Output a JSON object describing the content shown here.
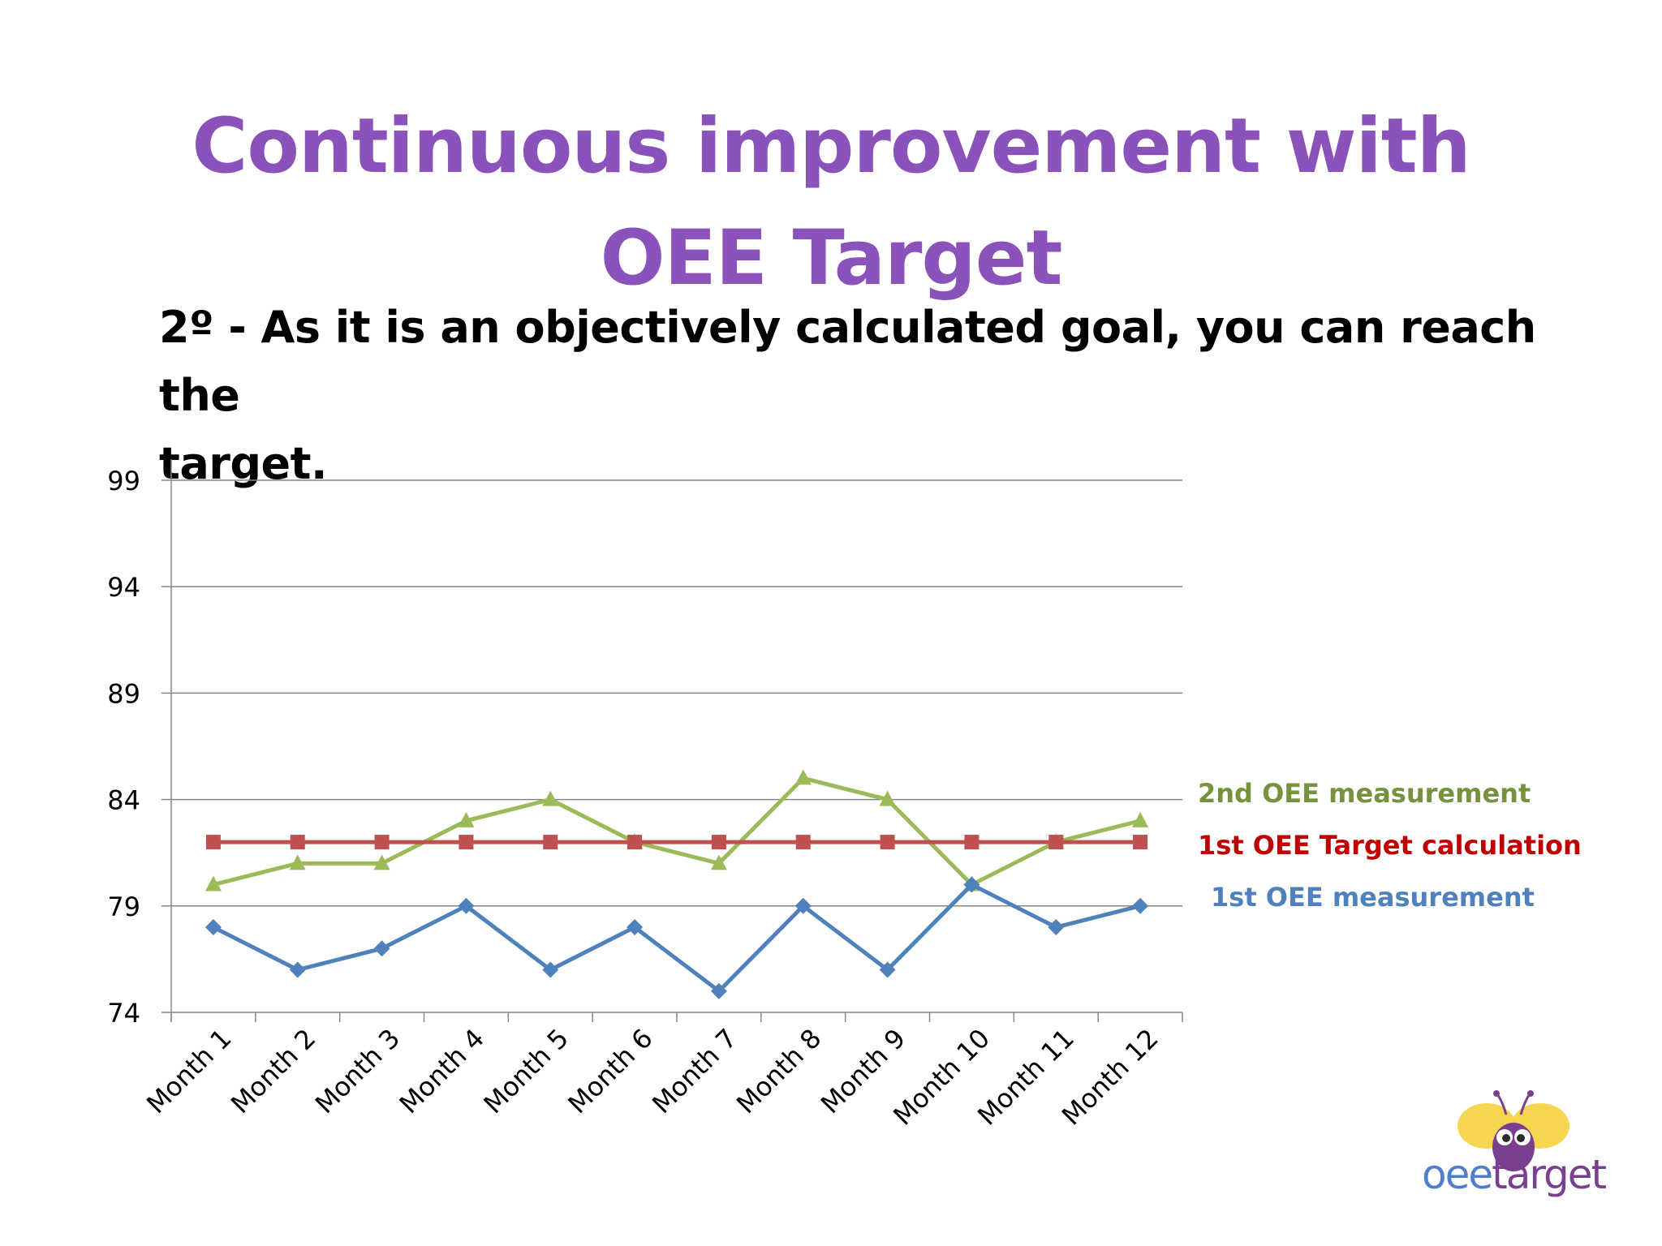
{
  "slide": {
    "title_line1": "Continuous improvement with",
    "title_line2": "OEE Target",
    "subtitle_line1": "2º - As it is an objectively calculated goal, you can reach the",
    "subtitle_line2": "target."
  },
  "logo": {
    "text_a": "oee",
    "text_b": "target",
    "color_a": "#4f7fc8",
    "color_b": "#7a3f8f",
    "icon": "bee-icon"
  },
  "colors": {
    "title": "#8a52ba",
    "axis": "#868686",
    "grid": "#868686"
  },
  "chart_data": {
    "type": "line",
    "categories": [
      "Month 1",
      "Month 2",
      "Month 3",
      "Month 4",
      "Month 5",
      "Month 6",
      "Month 7",
      "Month 8",
      "Month 9",
      "Month 10",
      "Month 11",
      "Month 12"
    ],
    "ylim": [
      74,
      99
    ],
    "yticks": [
      "99",
      "94",
      "89",
      "84",
      "79",
      "74"
    ],
    "ytick_values": [
      99,
      94,
      89,
      84,
      79,
      74
    ],
    "grid": true,
    "legend_placement": "right",
    "series": [
      {
        "name": "2nd OEE measurement",
        "color": "#9bbb59",
        "legend_color": "#76923c",
        "marker": "triangle",
        "values": [
          80,
          81,
          81,
          83,
          84,
          82,
          81,
          85,
          84,
          80,
          82,
          83
        ]
      },
      {
        "name": "1st OEE Target calculation",
        "color": "#c0504d",
        "legend_color": "#c00000",
        "marker": "square",
        "values": [
          82,
          82,
          82,
          82,
          82,
          82,
          82,
          82,
          82,
          82,
          82,
          82
        ]
      },
      {
        "name": "1st OEE measurement",
        "color": "#4f81bd",
        "legend_color": "#4f81bd",
        "marker": "diamond",
        "values": [
          78,
          76,
          77,
          79,
          76,
          78,
          75,
          79,
          76,
          80,
          78,
          79
        ]
      }
    ]
  }
}
